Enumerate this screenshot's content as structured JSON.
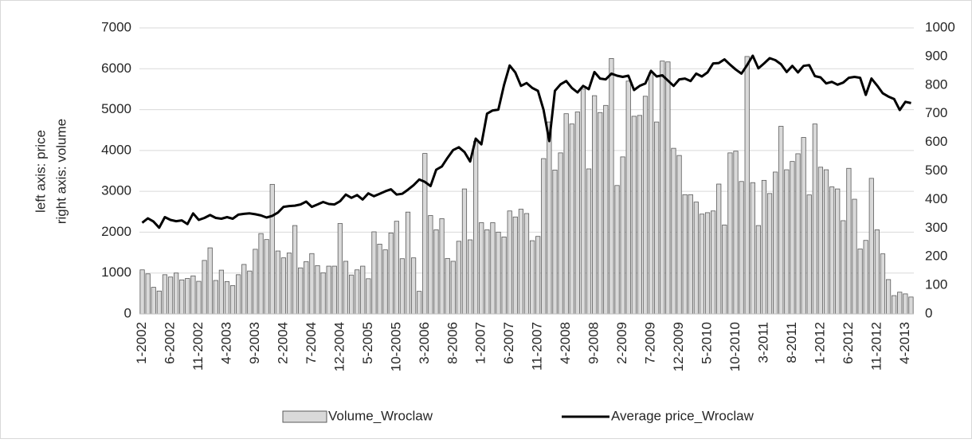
{
  "chart_data": {
    "type": "bar-line",
    "ylabel": "left axis: price",
    "y2label": "right axis: volume",
    "categories": [
      "1-2002",
      null,
      null,
      null,
      null,
      "6-2002",
      null,
      null,
      null,
      null,
      "11-2002",
      null,
      null,
      null,
      null,
      "4-2003",
      null,
      null,
      null,
      null,
      "9-2003",
      null,
      null,
      null,
      null,
      "2-2004",
      null,
      null,
      null,
      null,
      "7-2004",
      null,
      null,
      null,
      null,
      "12-2004",
      null,
      null,
      null,
      null,
      "5-2005",
      null,
      null,
      null,
      null,
      "10-2005",
      null,
      null,
      null,
      null,
      "3-2006",
      null,
      null,
      null,
      null,
      "8-2006",
      null,
      null,
      null,
      null,
      "1-2007",
      null,
      null,
      null,
      null,
      "6-2007",
      null,
      null,
      null,
      null,
      "11-2007",
      null,
      null,
      null,
      null,
      "4-2008",
      null,
      null,
      null,
      null,
      "9-2008",
      null,
      null,
      null,
      null,
      "2-2009",
      null,
      null,
      null,
      null,
      "7-2009",
      null,
      null,
      null,
      null,
      "12-2009",
      null,
      null,
      null,
      null,
      "5-2010",
      null,
      null,
      null,
      null,
      "10-2010",
      null,
      null,
      null,
      null,
      "3-2011",
      null,
      null,
      null,
      null,
      "8-2011",
      null,
      null,
      null,
      null,
      "1-2012",
      null,
      null,
      null,
      null,
      "6-2012",
      null,
      null,
      null,
      null,
      "11-2012",
      null,
      null,
      null,
      null,
      "4-2013",
      null
    ],
    "series": [
      {
        "name": "Volume_Wroclaw",
        "kind": "bar",
        "axis": "y2",
        "color": "#d9d9d9",
        "edgecolor": "#595959",
        "values": [
          154,
          140,
          93,
          80,
          137,
          129,
          143,
          119,
          124,
          133,
          114,
          187,
          231,
          117,
          153,
          113,
          99,
          137,
          173,
          150,
          226,
          281,
          260,
          453,
          220,
          196,
          213,
          309,
          161,
          183,
          211,
          169,
          144,
          167,
          167,
          316,
          184,
          136,
          154,
          167,
          123,
          287,
          244,
          224,
          283,
          324,
          193,
          356,
          196,
          79,
          561,
          344,
          294,
          333,
          194,
          184,
          254,
          437,
          259,
          604,
          319,
          294,
          319,
          286,
          269,
          360,
          339,
          366,
          351,
          256,
          271,
          543,
          671,
          503,
          563,
          700,
          664,
          706,
          786,
          507,
          763,
          704,
          729,
          893,
          449,
          549,
          814,
          691,
          694,
          761,
          843,
          671,
          884,
          881,
          579,
          554,
          417,
          417,
          391,
          349,
          354,
          360,
          454,
          311,
          563,
          569,
          463,
          900,
          459,
          309,
          467,
          421,
          496,
          656,
          504,
          533,
          560,
          617,
          416,
          664,
          513,
          504,
          444,
          437,
          326,
          509,
          401,
          227,
          257,
          474,
          294,
          210,
          120,
          64,
          76,
          70,
          59
        ]
      },
      {
        "name": "Average price_Wroclaw",
        "kind": "line",
        "axis": "y",
        "color": "#000000",
        "values": [
          2230,
          2340,
          2260,
          2110,
          2370,
          2300,
          2270,
          2290,
          2200,
          2460,
          2300,
          2350,
          2420,
          2350,
          2330,
          2370,
          2330,
          2430,
          2450,
          2460,
          2440,
          2410,
          2360,
          2400,
          2480,
          2620,
          2640,
          2650,
          2680,
          2750,
          2620,
          2680,
          2740,
          2690,
          2680,
          2760,
          2920,
          2840,
          2910,
          2800,
          2950,
          2880,
          2940,
          3000,
          3050,
          2920,
          2940,
          3040,
          3150,
          3290,
          3230,
          3130,
          3530,
          3610,
          3820,
          4010,
          4080,
          3960,
          3730,
          4290,
          4150,
          4900,
          4980,
          5000,
          5600,
          6080,
          5910,
          5580,
          5650,
          5530,
          5460,
          4990,
          4230,
          5460,
          5620,
          5700,
          5530,
          5420,
          5580,
          5500,
          5920,
          5760,
          5740,
          5880,
          5830,
          5800,
          5830,
          5480,
          5580,
          5640,
          5950,
          5810,
          5840,
          5710,
          5580,
          5740,
          5760,
          5700,
          5880,
          5810,
          5910,
          6130,
          6140,
          6230,
          6100,
          5980,
          5880,
          6090,
          6320,
          6010,
          6130,
          6260,
          6210,
          6110,
          5920,
          6070,
          5910,
          6070,
          6090,
          5820,
          5790,
          5640,
          5680,
          5610,
          5660,
          5780,
          5800,
          5780,
          5360,
          5760,
          5590,
          5400,
          5320,
          5260,
          4990,
          5190,
          5160
        ]
      }
    ],
    "ylim": [
      0,
      7000
    ],
    "yticks": [
      0,
      1000,
      2000,
      3000,
      4000,
      5000,
      6000,
      7000
    ],
    "y2lim": [
      0,
      1000
    ],
    "y2ticks": [
      0,
      100,
      200,
      300,
      400,
      500,
      600,
      700,
      800,
      900,
      1000
    ],
    "grid": true,
    "legend": "bottom"
  }
}
